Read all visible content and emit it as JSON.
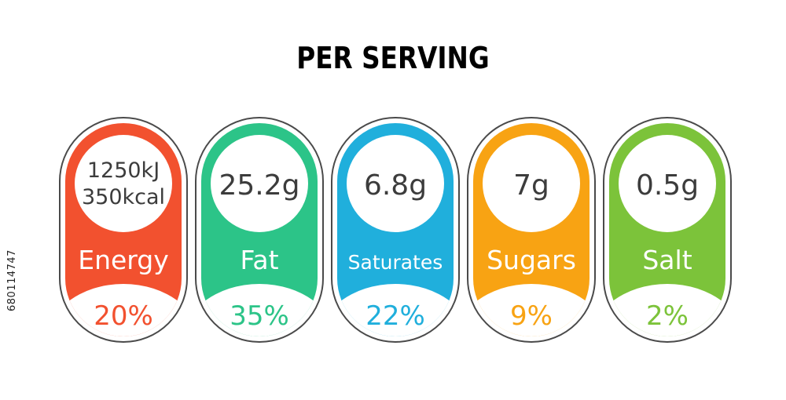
{
  "title": "PER SERVING",
  "stock_id": "680114747",
  "labels": [
    {
      "name": "Energy",
      "value_lines": [
        "1250kJ",
        "350kcal"
      ],
      "percent": "20%",
      "color": "#F2512F"
    },
    {
      "name": "Fat",
      "value_lines": [
        "25.2g"
      ],
      "percent": "35%",
      "color": "#2CC488"
    },
    {
      "name": "Saturates",
      "value_lines": [
        "6.8g"
      ],
      "percent": "22%",
      "color": "#20AFDC"
    },
    {
      "name": "Sugars",
      "value_lines": [
        "7g"
      ],
      "percent": "9%",
      "color": "#F8A313"
    },
    {
      "name": "Salt",
      "value_lines": [
        "0.5g"
      ],
      "percent": "2%",
      "color": "#7CC33A"
    }
  ],
  "colors": {
    "outline": "#4a4a4a",
    "value_text": "#3c3c3c",
    "background": "#ffffff"
  }
}
